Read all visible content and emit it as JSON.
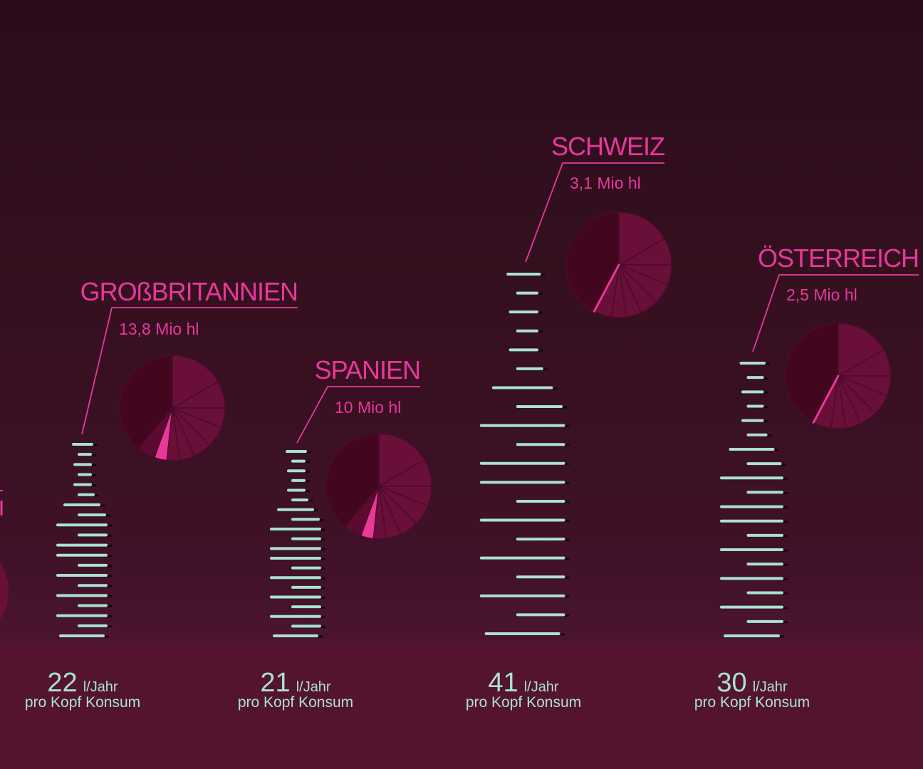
{
  "chart_data": {
    "type": "infographic",
    "title": "",
    "colors": {
      "accent": "#e8389a",
      "bars": "#a9e2cf",
      "pie_dark": "#43061f",
      "pie_mid": "#6a0f3a",
      "bg": "#34101f"
    },
    "unit_label": "l/Jahr",
    "sub_label": "pro Kopf Konsum",
    "countries": [
      {
        "name": "Großbritannien",
        "label": "GROßBRITANNIEN",
        "volume": "13,8 Mio hl",
        "per_capita": 22,
        "per_capita_text": "22",
        "unit": "l/Jahr",
        "sub": "pro Kopf Konsum",
        "highlight": "slice"
      },
      {
        "name": "Spanien",
        "label": "SPANIEN",
        "volume": "10 Mio hl",
        "per_capita": 21,
        "per_capita_text": "21",
        "unit": "l/Jahr",
        "sub": "pro Kopf Konsum",
        "highlight": "slice"
      },
      {
        "name": "Schweiz",
        "label": "SCHWEIZ",
        "volume": "3,1 Mio hl",
        "per_capita": 41,
        "per_capita_text": "41",
        "unit": "l/Jahr",
        "sub": "pro Kopf Konsum",
        "highlight": "line"
      },
      {
        "name": "Österreich",
        "label": "ÖSTERREICH",
        "volume": "2,5 Mio hl",
        "per_capita": 30,
        "per_capita_text": "30",
        "unit": "l/Jahr",
        "sub": "pro Kopf Konsum",
        "highlight": "line"
      }
    ]
  }
}
